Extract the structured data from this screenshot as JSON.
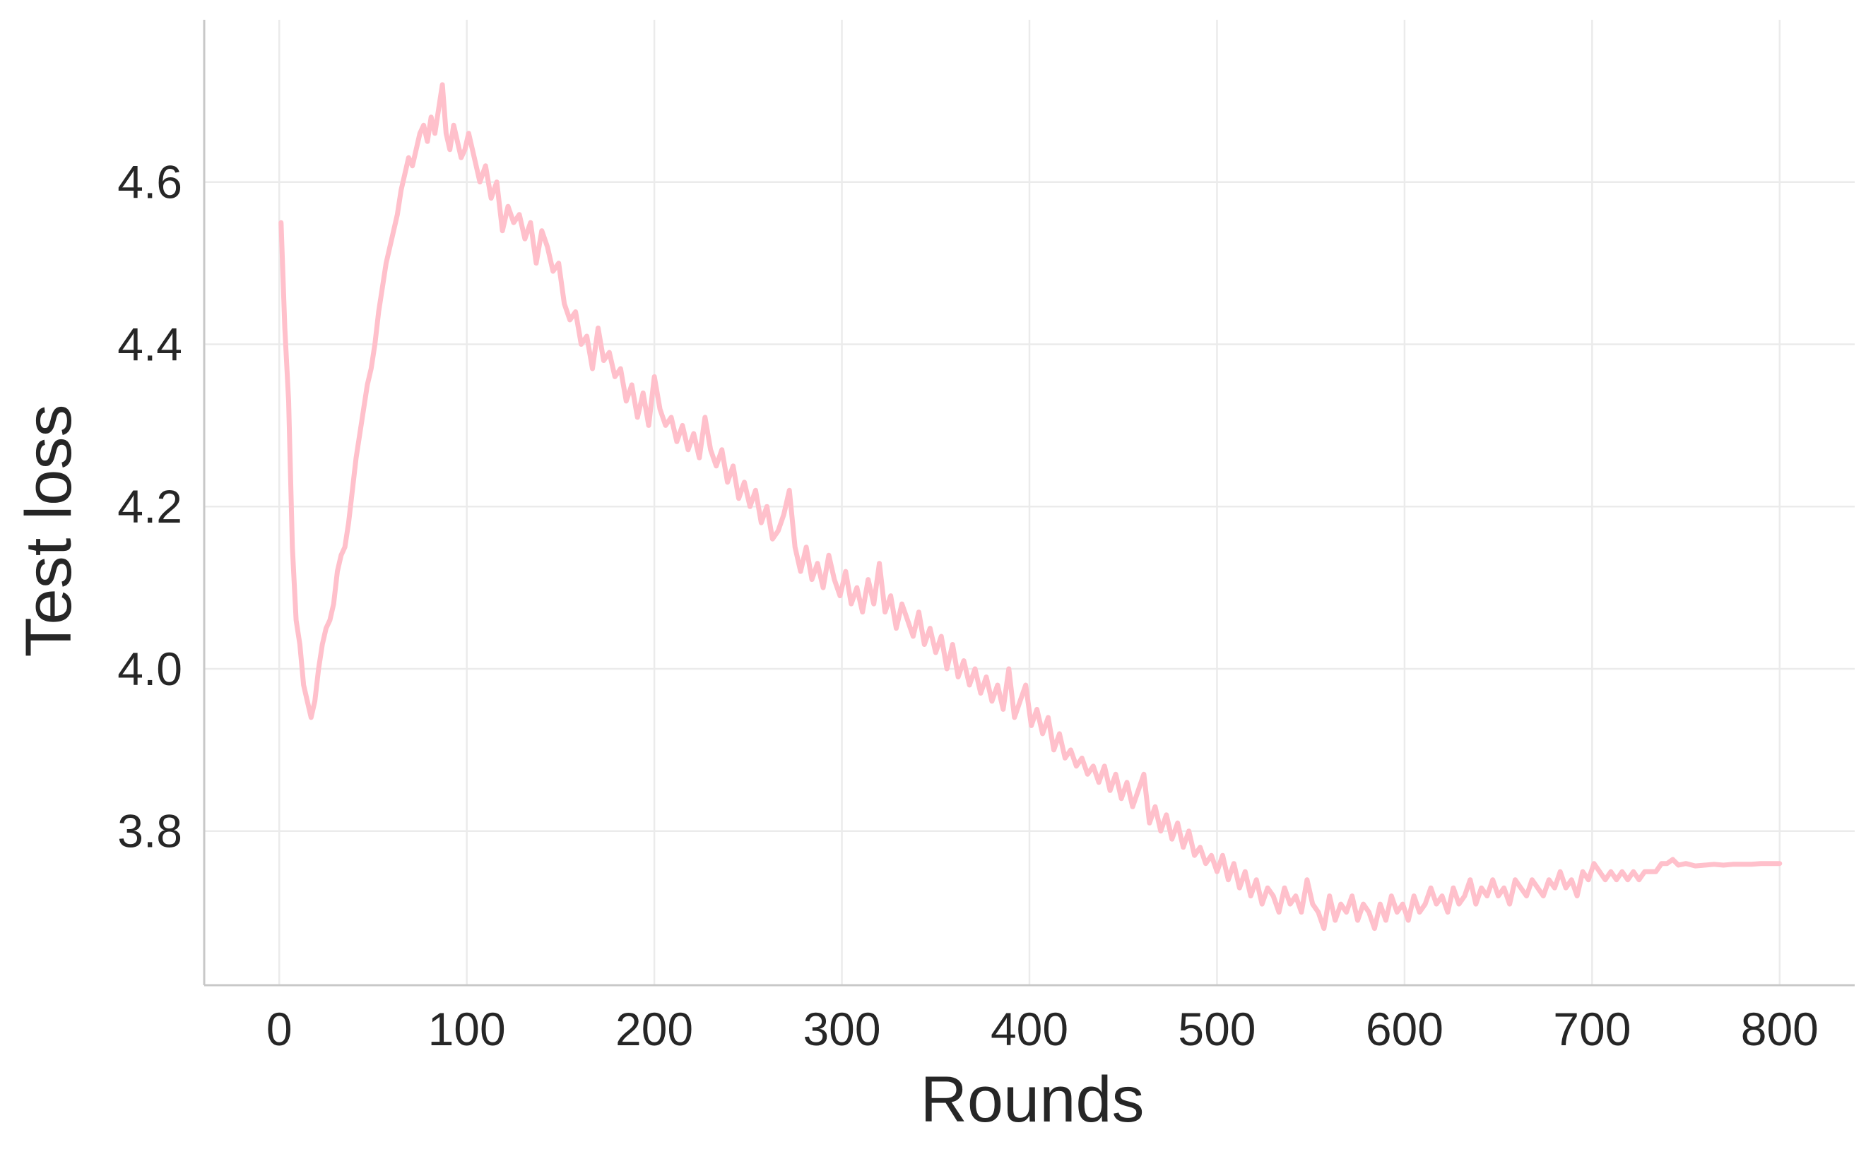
{
  "chart_data": {
    "type": "line",
    "xlabel": "Rounds",
    "ylabel": "Test loss",
    "xlim": [
      -40,
      840
    ],
    "ylim": [
      3.61,
      4.8
    ],
    "xticks": [
      0,
      100,
      200,
      300,
      400,
      500,
      600,
      700,
      800
    ],
    "yticks": [
      3.8,
      4.0,
      4.2,
      4.4,
      4.6
    ],
    "ytick_labels": [
      "3.8",
      "4.0",
      "4.2",
      "4.4",
      "4.6"
    ],
    "grid": true,
    "legend": "none",
    "series": [
      {
        "color": "#ffc0cb",
        "points": [
          [
            1,
            4.55
          ],
          [
            3,
            4.42
          ],
          [
            5,
            4.33
          ],
          [
            7,
            4.15
          ],
          [
            9,
            4.06
          ],
          [
            11,
            4.03
          ],
          [
            13,
            3.98
          ],
          [
            15,
            3.96
          ],
          [
            17,
            3.94
          ],
          [
            19,
            3.96
          ],
          [
            21,
            4.0
          ],
          [
            23,
            4.03
          ],
          [
            25,
            4.05
          ],
          [
            27,
            4.06
          ],
          [
            29,
            4.08
          ],
          [
            31,
            4.12
          ],
          [
            33,
            4.14
          ],
          [
            35,
            4.15
          ],
          [
            37,
            4.18
          ],
          [
            39,
            4.22
          ],
          [
            41,
            4.26
          ],
          [
            43,
            4.29
          ],
          [
            45,
            4.32
          ],
          [
            47,
            4.35
          ],
          [
            49,
            4.37
          ],
          [
            51,
            4.4
          ],
          [
            53,
            4.44
          ],
          [
            55,
            4.47
          ],
          [
            57,
            4.5
          ],
          [
            59,
            4.52
          ],
          [
            61,
            4.54
          ],
          [
            63,
            4.56
          ],
          [
            65,
            4.59
          ],
          [
            67,
            4.61
          ],
          [
            69,
            4.63
          ],
          [
            71,
            4.62
          ],
          [
            73,
            4.64
          ],
          [
            75,
            4.66
          ],
          [
            77,
            4.67
          ],
          [
            79,
            4.65
          ],
          [
            81,
            4.68
          ],
          [
            83,
            4.66
          ],
          [
            85,
            4.69
          ],
          [
            87,
            4.72
          ],
          [
            89,
            4.66
          ],
          [
            91,
            4.64
          ],
          [
            93,
            4.67
          ],
          [
            95,
            4.65
          ],
          [
            97,
            4.63
          ],
          [
            99,
            4.64
          ],
          [
            101,
            4.66
          ],
          [
            104,
            4.63
          ],
          [
            107,
            4.6
          ],
          [
            110,
            4.62
          ],
          [
            113,
            4.58
          ],
          [
            116,
            4.6
          ],
          [
            119,
            4.54
          ],
          [
            122,
            4.57
          ],
          [
            125,
            4.55
          ],
          [
            128,
            4.56
          ],
          [
            131,
            4.53
          ],
          [
            134,
            4.55
          ],
          [
            137,
            4.5
          ],
          [
            140,
            4.54
          ],
          [
            143,
            4.52
          ],
          [
            146,
            4.49
          ],
          [
            149,
            4.5
          ],
          [
            152,
            4.45
          ],
          [
            155,
            4.43
          ],
          [
            158,
            4.44
          ],
          [
            161,
            4.4
          ],
          [
            164,
            4.41
          ],
          [
            167,
            4.37
          ],
          [
            170,
            4.42
          ],
          [
            173,
            4.38
          ],
          [
            176,
            4.39
          ],
          [
            179,
            4.36
          ],
          [
            182,
            4.37
          ],
          [
            185,
            4.33
          ],
          [
            188,
            4.35
          ],
          [
            191,
            4.31
          ],
          [
            194,
            4.34
          ],
          [
            197,
            4.3
          ],
          [
            200,
            4.36
          ],
          [
            203,
            4.32
          ],
          [
            206,
            4.3
          ],
          [
            209,
            4.31
          ],
          [
            212,
            4.28
          ],
          [
            215,
            4.3
          ],
          [
            218,
            4.27
          ],
          [
            221,
            4.29
          ],
          [
            224,
            4.26
          ],
          [
            227,
            4.31
          ],
          [
            230,
            4.27
          ],
          [
            233,
            4.25
          ],
          [
            236,
            4.27
          ],
          [
            239,
            4.23
          ],
          [
            242,
            4.25
          ],
          [
            245,
            4.21
          ],
          [
            248,
            4.23
          ],
          [
            251,
            4.2
          ],
          [
            254,
            4.22
          ],
          [
            257,
            4.18
          ],
          [
            260,
            4.2
          ],
          [
            263,
            4.16
          ],
          [
            266,
            4.17
          ],
          [
            269,
            4.19
          ],
          [
            272,
            4.22
          ],
          [
            275,
            4.15
          ],
          [
            278,
            4.12
          ],
          [
            281,
            4.15
          ],
          [
            284,
            4.11
          ],
          [
            287,
            4.13
          ],
          [
            290,
            4.1
          ],
          [
            293,
            4.14
          ],
          [
            296,
            4.11
          ],
          [
            299,
            4.09
          ],
          [
            302,
            4.12
          ],
          [
            305,
            4.08
          ],
          [
            308,
            4.1
          ],
          [
            311,
            4.07
          ],
          [
            314,
            4.11
          ],
          [
            317,
            4.08
          ],
          [
            320,
            4.13
          ],
          [
            323,
            4.07
          ],
          [
            326,
            4.09
          ],
          [
            329,
            4.05
          ],
          [
            332,
            4.08
          ],
          [
            335,
            4.06
          ],
          [
            338,
            4.04
          ],
          [
            341,
            4.07
          ],
          [
            344,
            4.03
          ],
          [
            347,
            4.05
          ],
          [
            350,
            4.02
          ],
          [
            353,
            4.04
          ],
          [
            356,
            4.0
          ],
          [
            359,
            4.03
          ],
          [
            362,
            3.99
          ],
          [
            365,
            4.01
          ],
          [
            368,
            3.98
          ],
          [
            371,
            4.0
          ],
          [
            374,
            3.97
          ],
          [
            377,
            3.99
          ],
          [
            380,
            3.96
          ],
          [
            383,
            3.98
          ],
          [
            386,
            3.95
          ],
          [
            389,
            4.0
          ],
          [
            392,
            3.94
          ],
          [
            395,
            3.96
          ],
          [
            398,
            3.98
          ],
          [
            401,
            3.93
          ],
          [
            404,
            3.95
          ],
          [
            407,
            3.92
          ],
          [
            410,
            3.94
          ],
          [
            413,
            3.9
          ],
          [
            416,
            3.92
          ],
          [
            419,
            3.89
          ],
          [
            422,
            3.9
          ],
          [
            425,
            3.88
          ],
          [
            428,
            3.89
          ],
          [
            431,
            3.87
          ],
          [
            434,
            3.88
          ],
          [
            437,
            3.86
          ],
          [
            440,
            3.88
          ],
          [
            443,
            3.85
          ],
          [
            446,
            3.87
          ],
          [
            449,
            3.84
          ],
          [
            452,
            3.86
          ],
          [
            455,
            3.83
          ],
          [
            458,
            3.85
          ],
          [
            461,
            3.87
          ],
          [
            464,
            3.81
          ],
          [
            467,
            3.83
          ],
          [
            470,
            3.8
          ],
          [
            473,
            3.82
          ],
          [
            476,
            3.79
          ],
          [
            479,
            3.81
          ],
          [
            482,
            3.78
          ],
          [
            485,
            3.8
          ],
          [
            488,
            3.77
          ],
          [
            491,
            3.78
          ],
          [
            494,
            3.76
          ],
          [
            497,
            3.77
          ],
          [
            500,
            3.75
          ],
          [
            503,
            3.77
          ],
          [
            506,
            3.74
          ],
          [
            509,
            3.76
          ],
          [
            512,
            3.73
          ],
          [
            515,
            3.75
          ],
          [
            518,
            3.72
          ],
          [
            521,
            3.74
          ],
          [
            524,
            3.71
          ],
          [
            527,
            3.73
          ],
          [
            530,
            3.72
          ],
          [
            533,
            3.7
          ],
          [
            536,
            3.73
          ],
          [
            539,
            3.71
          ],
          [
            542,
            3.72
          ],
          [
            545,
            3.7
          ],
          [
            548,
            3.74
          ],
          [
            551,
            3.71
          ],
          [
            554,
            3.7
          ],
          [
            557,
            3.68
          ],
          [
            560,
            3.72
          ],
          [
            563,
            3.69
          ],
          [
            566,
            3.71
          ],
          [
            569,
            3.7
          ],
          [
            572,
            3.72
          ],
          [
            575,
            3.69
          ],
          [
            578,
            3.71
          ],
          [
            581,
            3.7
          ],
          [
            584,
            3.68
          ],
          [
            587,
            3.71
          ],
          [
            590,
            3.69
          ],
          [
            593,
            3.72
          ],
          [
            596,
            3.7
          ],
          [
            599,
            3.71
          ],
          [
            602,
            3.69
          ],
          [
            605,
            3.72
          ],
          [
            608,
            3.7
          ],
          [
            611,
            3.71
          ],
          [
            614,
            3.73
          ],
          [
            617,
            3.71
          ],
          [
            620,
            3.72
          ],
          [
            623,
            3.7
          ],
          [
            626,
            3.73
          ],
          [
            629,
            3.71
          ],
          [
            632,
            3.72
          ],
          [
            635,
            3.74
          ],
          [
            638,
            3.71
          ],
          [
            641,
            3.73
          ],
          [
            644,
            3.72
          ],
          [
            647,
            3.74
          ],
          [
            650,
            3.72
          ],
          [
            653,
            3.73
          ],
          [
            656,
            3.71
          ],
          [
            659,
            3.74
          ],
          [
            662,
            3.73
          ],
          [
            665,
            3.72
          ],
          [
            668,
            3.74
          ],
          [
            671,
            3.73
          ],
          [
            674,
            3.72
          ],
          [
            677,
            3.74
          ],
          [
            680,
            3.73
          ],
          [
            683,
            3.75
          ],
          [
            686,
            3.73
          ],
          [
            689,
            3.74
          ],
          [
            692,
            3.72
          ],
          [
            695,
            3.75
          ],
          [
            698,
            3.74
          ],
          [
            701,
            3.76
          ],
          [
            704,
            3.75
          ],
          [
            707,
            3.74
          ],
          [
            710,
            3.75
          ],
          [
            713,
            3.74
          ],
          [
            716,
            3.75
          ],
          [
            719,
            3.74
          ],
          [
            722,
            3.75
          ],
          [
            725,
            3.74
          ],
          [
            728,
            3.75
          ],
          [
            731,
            3.75
          ],
          [
            734,
            3.75
          ],
          [
            737,
            3.76
          ],
          [
            740,
            3.76
          ],
          [
            743,
            3.765
          ],
          [
            746,
            3.758
          ],
          [
            750,
            3.76
          ],
          [
            755,
            3.757
          ],
          [
            760,
            3.758
          ],
          [
            765,
            3.759
          ],
          [
            770,
            3.758
          ],
          [
            775,
            3.759
          ],
          [
            780,
            3.759
          ],
          [
            785,
            3.759
          ],
          [
            790,
            3.76
          ],
          [
            795,
            3.76
          ],
          [
            800,
            3.76
          ]
        ]
      }
    ]
  }
}
